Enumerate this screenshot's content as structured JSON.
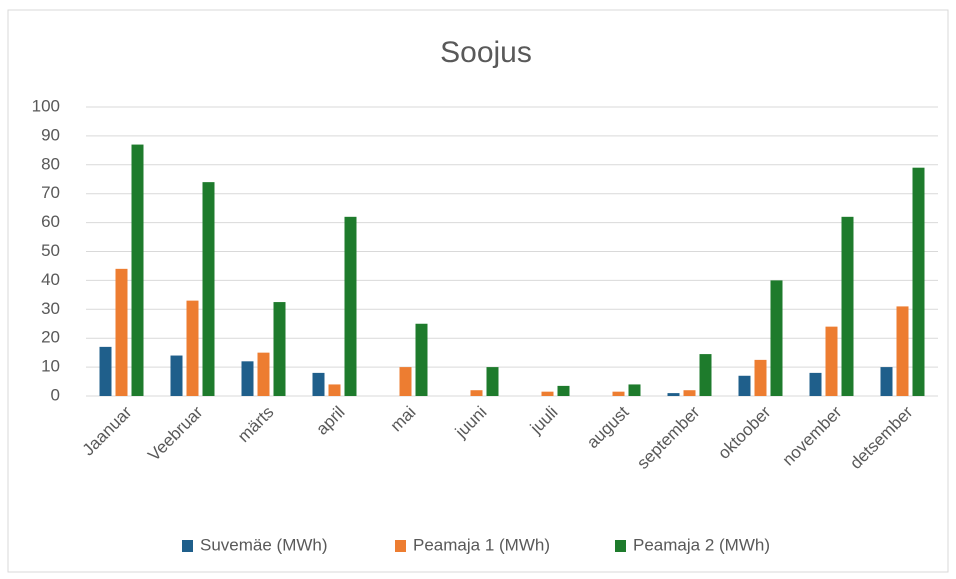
{
  "chart_data": {
    "type": "bar",
    "title": "Soojus",
    "categories": [
      "Jaanuar",
      "Veebruar",
      "märts",
      "april",
      "mai",
      "juuni",
      "juuli",
      "august",
      "september",
      "oktoober",
      "november",
      "detsember"
    ],
    "series": [
      {
        "name": "Suvemäe (MWh)",
        "color": "#1f5f8b",
        "values": [
          17,
          14,
          12,
          8,
          0,
          0,
          0,
          0,
          1,
          7,
          8,
          10
        ]
      },
      {
        "name": "Peamaja 1 (MWh)",
        "color": "#ed7d31",
        "values": [
          44,
          33,
          15,
          4,
          10,
          2,
          1.5,
          1.5,
          2,
          12.5,
          24,
          31
        ]
      },
      {
        "name": "Peamaja 2 (MWh)",
        "color": "#1e7b2c",
        "values": [
          87,
          74,
          32.5,
          62,
          25,
          10,
          3.5,
          4,
          14.5,
          40,
          62,
          79
        ]
      }
    ],
    "ylim": [
      0,
      100
    ],
    "yticks": [
      0,
      10,
      20,
      30,
      40,
      50,
      60,
      70,
      80,
      90,
      100
    ],
    "grid": true,
    "legend": "bottom"
  }
}
